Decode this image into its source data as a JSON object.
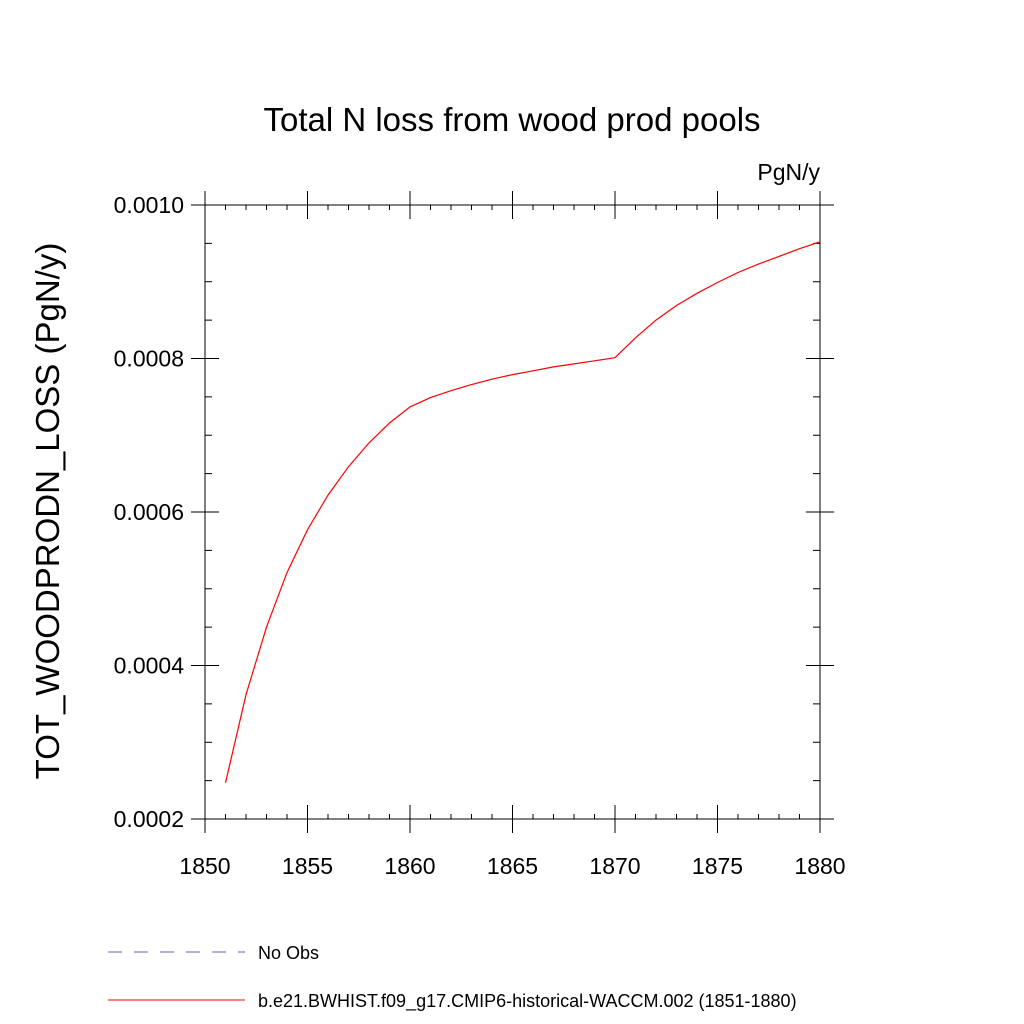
{
  "chart_data": {
    "type": "line",
    "title": "Total N loss from wood prod pools",
    "units": "PgN/y",
    "xlabel": "",
    "ylabel": "TOT_WOODPRODN_LOSS  (PgN/y)",
    "xlim": [
      1850,
      1880
    ],
    "ylim": [
      0.0002,
      0.001
    ],
    "x_ticks": [
      1850,
      1855,
      1860,
      1865,
      1870,
      1875,
      1880
    ],
    "x_tick_labels": [
      "1850",
      "1855",
      "1860",
      "1865",
      "1870",
      "1875",
      "1880"
    ],
    "y_ticks": [
      0.0002,
      0.0004,
      0.0006,
      0.0008,
      0.001
    ],
    "y_tick_labels": [
      "0.0002",
      "0.0004",
      "0.0006",
      "0.0008",
      "0.0010"
    ],
    "y_minor_step": 5e-05,
    "grid": false,
    "legend_position": "bottom-left",
    "series": [
      {
        "name": "No Obs",
        "color": "#6a5acd",
        "style": "dashed",
        "x": [],
        "y": []
      },
      {
        "name": "b.e21.BWHIST.f09_g17.CMIP6-historical-WACCM.002 (1851-1880)",
        "color": "#ff0000",
        "style": "solid",
        "x": [
          1851,
          1852,
          1853,
          1854,
          1855,
          1856,
          1857,
          1858,
          1859,
          1860,
          1861,
          1862,
          1863,
          1864,
          1865,
          1866,
          1867,
          1868,
          1869,
          1870,
          1871,
          1872,
          1873,
          1874,
          1875,
          1876,
          1877,
          1878,
          1879,
          1880
        ],
        "y": [
          0.000247,
          0.000362,
          0.00045,
          0.000521,
          0.000577,
          0.000622,
          0.000659,
          0.00069,
          0.000716,
          0.000737,
          0.000749,
          0.000758,
          0.000766,
          0.000773,
          0.000779,
          0.000784,
          0.000789,
          0.000793,
          0.000797,
          0.000801,
          0.000827,
          0.00085,
          0.000869,
          0.000885,
          0.000899,
          0.000912,
          0.000923,
          0.000933,
          0.000943,
          0.000952
        ]
      }
    ]
  }
}
